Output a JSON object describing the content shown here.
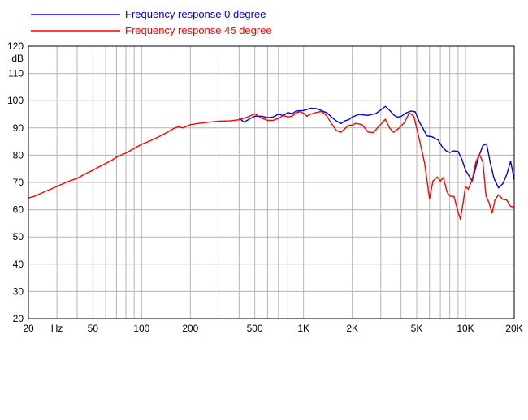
{
  "chart_data": {
    "type": "line",
    "title": "",
    "xlabel": "",
    "ylabel": "",
    "x_scale": "log",
    "xlim": [
      20,
      20000
    ],
    "ylim": [
      20,
      120
    ],
    "grid": true,
    "legend_placement": "top-left",
    "y_ticks": [
      20,
      30,
      40,
      50,
      60,
      70,
      80,
      90,
      100,
      110,
      120
    ],
    "y_unit_label": "dB",
    "x_tick_labels": [
      {
        "value": 20,
        "label": "20"
      },
      {
        "value": 30,
        "label": "Hz"
      },
      {
        "value": 50,
        "label": "50"
      },
      {
        "value": 100,
        "label": "100"
      },
      {
        "value": 200,
        "label": "200"
      },
      {
        "value": 500,
        "label": "500"
      },
      {
        "value": 1000,
        "label": "1K"
      },
      {
        "value": 2000,
        "label": "2K"
      },
      {
        "value": 5000,
        "label": "5K"
      },
      {
        "value": 10000,
        "label": "10K"
      },
      {
        "value": 20000,
        "label": "20K"
      }
    ],
    "x_gridlines": [
      20,
      30,
      40,
      50,
      60,
      70,
      80,
      90,
      100,
      200,
      300,
      400,
      500,
      600,
      700,
      800,
      900,
      1000,
      2000,
      3000,
      4000,
      5000,
      6000,
      7000,
      8000,
      9000,
      10000,
      20000
    ],
    "series": [
      {
        "name": "Frequency response 0 degree",
        "color": "#0000dd",
        "points": [
          [
            400,
            93.6
          ],
          [
            430,
            92.1
          ],
          [
            460,
            93.2
          ],
          [
            500,
            94.3
          ],
          [
            550,
            94.3
          ],
          [
            600,
            93.8
          ],
          [
            650,
            94.0
          ],
          [
            700,
            95.1
          ],
          [
            750,
            94.5
          ],
          [
            800,
            95.7
          ],
          [
            850,
            95.2
          ],
          [
            900,
            96.2
          ],
          [
            1000,
            96.4
          ],
          [
            1100,
            97.2
          ],
          [
            1200,
            97.1
          ],
          [
            1300,
            96.3
          ],
          [
            1400,
            95.5
          ],
          [
            1500,
            93.8
          ],
          [
            1600,
            92.5
          ],
          [
            1700,
            91.6
          ],
          [
            1800,
            92.6
          ],
          [
            1900,
            93.0
          ],
          [
            2000,
            94.0
          ],
          [
            2200,
            95.0
          ],
          [
            2500,
            94.6
          ],
          [
            2800,
            95.3
          ],
          [
            3000,
            96.6
          ],
          [
            3200,
            97.9
          ],
          [
            3400,
            96.5
          ],
          [
            3600,
            94.8
          ],
          [
            3800,
            94.0
          ],
          [
            4000,
            94.2
          ],
          [
            4300,
            95.5
          ],
          [
            4600,
            96.2
          ],
          [
            4900,
            95.9
          ],
          [
            5200,
            92.1
          ],
          [
            5500,
            89.5
          ],
          [
            5800,
            87.0
          ],
          [
            6200,
            86.8
          ],
          [
            6800,
            85.5
          ],
          [
            7200,
            83.0
          ],
          [
            7600,
            81.6
          ],
          [
            8000,
            81.0
          ],
          [
            8500,
            81.6
          ],
          [
            9000,
            81.4
          ],
          [
            9500,
            78.5
          ],
          [
            10000,
            74.5
          ],
          [
            10500,
            72.5
          ],
          [
            11000,
            70.5
          ],
          [
            12000,
            79.0
          ],
          [
            12800,
            83.5
          ],
          [
            13500,
            84.2
          ],
          [
            14200,
            77.5
          ],
          [
            15000,
            71.5
          ],
          [
            16000,
            68.0
          ],
          [
            17000,
            69.5
          ],
          [
            18000,
            73.0
          ],
          [
            19000,
            77.8
          ],
          [
            20000,
            71.0
          ]
        ]
      },
      {
        "name": "Frequency response 45 degree",
        "color": "#ff0000",
        "points": [
          [
            20,
            64.3
          ],
          [
            22,
            65.0
          ],
          [
            25,
            66.5
          ],
          [
            30,
            68.5
          ],
          [
            35,
            70.3
          ],
          [
            40,
            71.5
          ],
          [
            45,
            73.2
          ],
          [
            50,
            74.5
          ],
          [
            55,
            75.8
          ],
          [
            60,
            77.0
          ],
          [
            65,
            78.0
          ],
          [
            70,
            79.3
          ],
          [
            80,
            80.8
          ],
          [
            90,
            82.5
          ],
          [
            100,
            84.0
          ],
          [
            110,
            85.0
          ],
          [
            120,
            86.0
          ],
          [
            130,
            87.0
          ],
          [
            140,
            88.0
          ],
          [
            150,
            89.0
          ],
          [
            160,
            90.0
          ],
          [
            170,
            90.4
          ],
          [
            180,
            90.0
          ],
          [
            190,
            90.6
          ],
          [
            200,
            91.2
          ],
          [
            220,
            91.6
          ],
          [
            250,
            92.0
          ],
          [
            300,
            92.5
          ],
          [
            350,
            92.6
          ],
          [
            400,
            93.0
          ],
          [
            450,
            94.0
          ],
          [
            500,
            95.2
          ],
          [
            550,
            93.6
          ],
          [
            600,
            92.8
          ],
          [
            650,
            92.8
          ],
          [
            700,
            93.5
          ],
          [
            750,
            94.6
          ],
          [
            800,
            94.0
          ],
          [
            850,
            94.3
          ],
          [
            900,
            95.5
          ],
          [
            950,
            96.0
          ],
          [
            1000,
            95.4
          ],
          [
            1050,
            94.3
          ],
          [
            1100,
            95.0
          ],
          [
            1200,
            95.7
          ],
          [
            1300,
            96.1
          ],
          [
            1400,
            94.2
          ],
          [
            1500,
            91.3
          ],
          [
            1600,
            89.0
          ],
          [
            1700,
            88.4
          ],
          [
            1800,
            89.7
          ],
          [
            1900,
            91.0
          ],
          [
            2000,
            91.0
          ],
          [
            2100,
            91.7
          ],
          [
            2300,
            91.2
          ],
          [
            2500,
            88.5
          ],
          [
            2700,
            88.3
          ],
          [
            3000,
            91.3
          ],
          [
            3200,
            93.2
          ],
          [
            3400,
            90.0
          ],
          [
            3600,
            88.4
          ],
          [
            3900,
            90.0
          ],
          [
            4200,
            92.0
          ],
          [
            4500,
            95.5
          ],
          [
            4800,
            94.3
          ],
          [
            5200,
            85.6
          ],
          [
            5600,
            77.0
          ],
          [
            6000,
            64.0
          ],
          [
            6300,
            70.5
          ],
          [
            6700,
            72.0
          ],
          [
            7000,
            70.5
          ],
          [
            7300,
            71.8
          ],
          [
            7700,
            66.5
          ],
          [
            8000,
            65.0
          ],
          [
            8500,
            64.8
          ],
          [
            9000,
            59.2
          ],
          [
            9300,
            56.5
          ],
          [
            9700,
            63.0
          ],
          [
            10000,
            68.5
          ],
          [
            10400,
            67.5
          ],
          [
            11000,
            71.0
          ],
          [
            11600,
            77.5
          ],
          [
            12200,
            80.3
          ],
          [
            12800,
            77.5
          ],
          [
            13400,
            65.0
          ],
          [
            14000,
            62.5
          ],
          [
            14600,
            58.7
          ],
          [
            15200,
            63.5
          ],
          [
            16000,
            65.5
          ],
          [
            17000,
            63.8
          ],
          [
            18000,
            63.5
          ],
          [
            19000,
            61.2
          ],
          [
            20000,
            61.0
          ]
        ]
      }
    ]
  }
}
